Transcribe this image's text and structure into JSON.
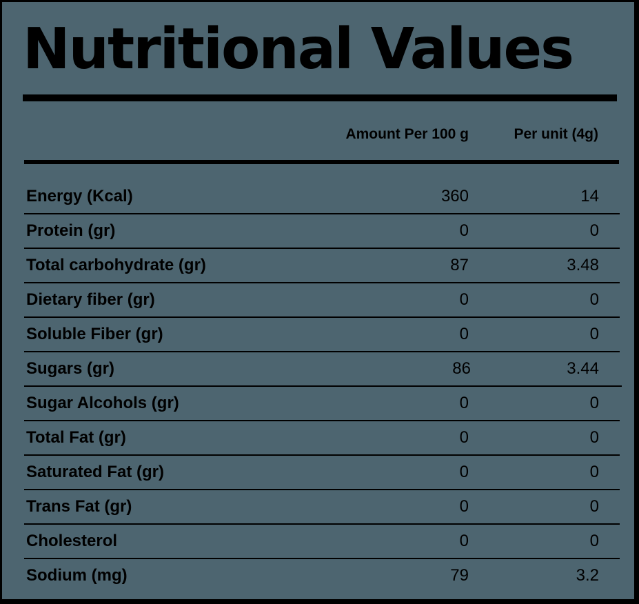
{
  "title": "Nutritional Values",
  "columns": {
    "per_100g": "Amount Per 100 g",
    "per_unit": "Per unit (4g)"
  },
  "rows": [
    {
      "name": "Energy (Kcal)",
      "per_100g": "360",
      "per_unit": "14"
    },
    {
      "name": "Protein (gr)",
      "per_100g": "0",
      "per_unit": "0"
    },
    {
      "name": "Total carbohydrate (gr)",
      "per_100g": "87",
      "per_unit": "3.48"
    },
    {
      "name": "Dietary fiber (gr)",
      "per_100g": "0",
      "per_unit": "0"
    },
    {
      "name": "Soluble Fiber (gr)",
      "per_100g": "0",
      "per_unit": "0"
    },
    {
      "name": "Sugars (gr)",
      "per_100g": "86",
      "per_unit": "3.44"
    },
    {
      "name": "Sugar Alcohols (gr)",
      "per_100g": "0",
      "per_unit": "0"
    },
    {
      "name": "Total Fat (gr)",
      "per_100g": "0",
      "per_unit": "0"
    },
    {
      "name": "Saturated Fat (gr)",
      "per_100g": "0",
      "per_unit": "0"
    },
    {
      "name": "Trans Fat (gr)",
      "per_100g": "0",
      "per_unit": "0"
    },
    {
      "name": "Cholesterol",
      "per_100g": "0",
      "per_unit": "0"
    },
    {
      "name": "Sodium (mg)",
      "per_100g": "79",
      "per_unit": "3.2"
    }
  ],
  "colors": {
    "background": "#4d6570",
    "text": "#000000",
    "border": "#000000"
  }
}
